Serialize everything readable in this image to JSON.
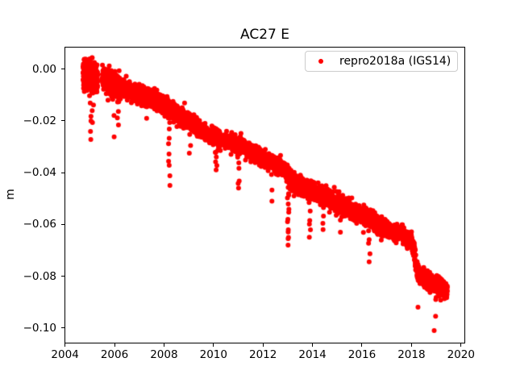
{
  "figure_background": "#ffffff",
  "chart_data": {
    "type": "scatter",
    "title": "AC27 E",
    "xlabel": "",
    "ylabel": "m",
    "legend": {
      "position": "upper-right",
      "entries": [
        {
          "label": "repro2018a (IGS14)",
          "marker": "dot",
          "color": "#ff0000"
        }
      ]
    },
    "colors": {
      "marker": "#ff0000",
      "spine": "#000000",
      "text": "#000000",
      "legend_border": "#cccccc",
      "background": "#ffffff"
    },
    "axes": {
      "xlim": [
        2003.98,
        2020.17
      ],
      "ylim": [
        -0.106,
        0.0086
      ],
      "xticks": [
        2004,
        2006,
        2008,
        2010,
        2012,
        2014,
        2016,
        2018,
        2020
      ],
      "xtick_labels": [
        "2004",
        "2006",
        "2008",
        "2010",
        "2012",
        "2014",
        "2016",
        "2018",
        "2020"
      ],
      "yticks": [
        0.0,
        -0.02,
        -0.04,
        -0.06,
        -0.08,
        -0.1
      ],
      "ytick_labels": [
        "0.00",
        "−0.02",
        "−0.04",
        "−0.06",
        "−0.08",
        "−0.10"
      ],
      "grid": false
    },
    "series": [
      {
        "name": "repro2018a (IGS14)",
        "color": "#ff0000",
        "marker_radius_px": 3,
        "seed": 7,
        "x_span": [
          2004.73,
          2019.45
        ],
        "gaps": [
          [
            2005.32,
            2005.5
          ]
        ],
        "points_per_year": 330,
        "noise_sigma_m": 0.0016,
        "early_cluster": {
          "until": 2006.2,
          "sigma_m": 0.0026,
          "density_boost_until": 2005.35,
          "density_boost": 1.6,
          "max_value_m": 0.0045
        },
        "trend_anchors": [
          [
            2004.73,
            -0.0015
          ],
          [
            2005.0,
            -0.0025
          ],
          [
            2005.32,
            -0.0035
          ],
          [
            2005.5,
            -0.0035
          ],
          [
            2006.0,
            -0.0055
          ],
          [
            2006.5,
            -0.008
          ],
          [
            2007.0,
            -0.01
          ],
          [
            2007.5,
            -0.0115
          ],
          [
            2008.0,
            -0.0135
          ],
          [
            2008.5,
            -0.017
          ],
          [
            2009.0,
            -0.02
          ],
          [
            2009.5,
            -0.0235
          ],
          [
            2010.0,
            -0.026
          ],
          [
            2010.5,
            -0.0275
          ],
          [
            2011.0,
            -0.029
          ],
          [
            2011.5,
            -0.032
          ],
          [
            2012.0,
            -0.035
          ],
          [
            2012.5,
            -0.037
          ],
          [
            2012.95,
            -0.039
          ],
          [
            2013.1,
            -0.043
          ],
          [
            2013.5,
            -0.0455
          ],
          [
            2014.0,
            -0.047
          ],
          [
            2014.5,
            -0.0495
          ],
          [
            2015.0,
            -0.052
          ],
          [
            2015.5,
            -0.054
          ],
          [
            2016.0,
            -0.0565
          ],
          [
            2016.5,
            -0.059
          ],
          [
            2017.0,
            -0.0615
          ],
          [
            2017.5,
            -0.0635
          ],
          [
            2018.0,
            -0.066
          ],
          [
            2018.12,
            -0.0715
          ],
          [
            2018.25,
            -0.079
          ],
          [
            2018.6,
            -0.081
          ],
          [
            2019.0,
            -0.0835
          ],
          [
            2019.45,
            -0.086
          ]
        ],
        "outlier_spikes": [
          {
            "year": 2005.02,
            "min_m": -0.0272,
            "count": 7
          },
          {
            "year": 2005.12,
            "min_m": -0.0207,
            "count": 4
          },
          {
            "year": 2005.95,
            "min_m": -0.0262,
            "count": 3
          },
          {
            "year": 2006.15,
            "min_m": -0.0216,
            "count": 5
          },
          {
            "year": 2007.3,
            "min_m": -0.019,
            "count": 2
          },
          {
            "year": 2008.2,
            "min_m": -0.045,
            "count": 9
          },
          {
            "year": 2009.05,
            "min_m": -0.0325,
            "count": 3
          },
          {
            "year": 2010.1,
            "min_m": -0.039,
            "count": 6
          },
          {
            "year": 2011.0,
            "min_m": -0.046,
            "count": 6
          },
          {
            "year": 2012.35,
            "min_m": -0.051,
            "count": 3
          },
          {
            "year": 2013.02,
            "min_m": -0.068,
            "count": 14
          },
          {
            "year": 2013.9,
            "min_m": -0.065,
            "count": 6
          },
          {
            "year": 2014.45,
            "min_m": -0.062,
            "count": 4
          },
          {
            "year": 2015.15,
            "min_m": -0.063,
            "count": 2
          },
          {
            "year": 2016.3,
            "min_m": -0.0745,
            "count": 5
          },
          {
            "year": 2018.3,
            "min_m": -0.092,
            "count": 1
          },
          {
            "year": 2018.95,
            "min_m": -0.101,
            "count": 3
          }
        ]
      }
    ]
  }
}
